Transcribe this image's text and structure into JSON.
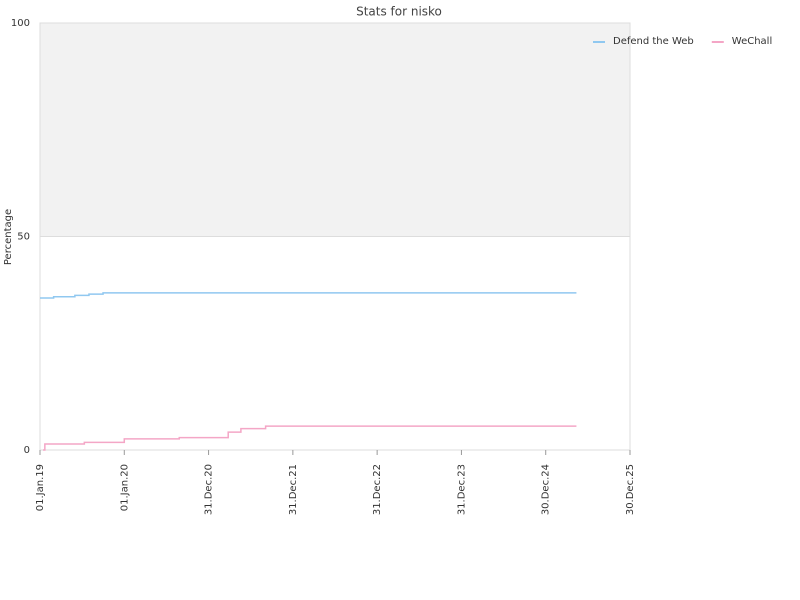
{
  "chart_data": {
    "type": "line",
    "step": true,
    "title": "Stats for nisko",
    "y_label": "Percentage",
    "xlim": [
      "2019-01-01",
      "2025-12-30"
    ],
    "xticks": [
      {
        "value": "2019-01-01",
        "label": "01.Jan.19"
      },
      {
        "value": "2020-01-01",
        "label": "01.Jan.20"
      },
      {
        "value": "2020-12-31",
        "label": "31.Dec.20"
      },
      {
        "value": "2021-12-31",
        "label": "31.Dec.21"
      },
      {
        "value": "2022-12-31",
        "label": "31.Dec.22"
      },
      {
        "value": "2023-12-31",
        "label": "31.Dec.23"
      },
      {
        "value": "2024-12-30",
        "label": "30.Dec.24"
      },
      {
        "value": "2025-12-30",
        "label": "30.Dec.25"
      }
    ],
    "ylim": [
      0,
      100
    ],
    "yticks": [
      0,
      50,
      100
    ],
    "plot_band": {
      "from": 50,
      "to": 100,
      "color": "#f2f2f2"
    },
    "legend": "top-right",
    "series": [
      {
        "name": "Defend the Web",
        "color": "#90c8f0",
        "x": [
          "2019-01-01",
          "2019-03-01",
          "2019-06-01",
          "2019-08-01",
          "2019-10-01",
          "2025-05-12"
        ],
        "values": [
          35.6,
          35.9,
          36.2,
          36.5,
          36.8,
          36.8
        ]
      },
      {
        "name": "WeChall",
        "color": "#f4a6c6",
        "x": [
          "2019-01-14",
          "2019-01-22",
          "2019-07-12",
          "2020-01-01",
          "2020-08-26",
          "2021-03-26",
          "2021-05-20",
          "2021-09-04",
          "2025-05-12"
        ],
        "values": [
          0,
          1.4,
          1.8,
          2.6,
          2.9,
          4.2,
          5.0,
          5.6,
          5.6
        ]
      }
    ]
  }
}
